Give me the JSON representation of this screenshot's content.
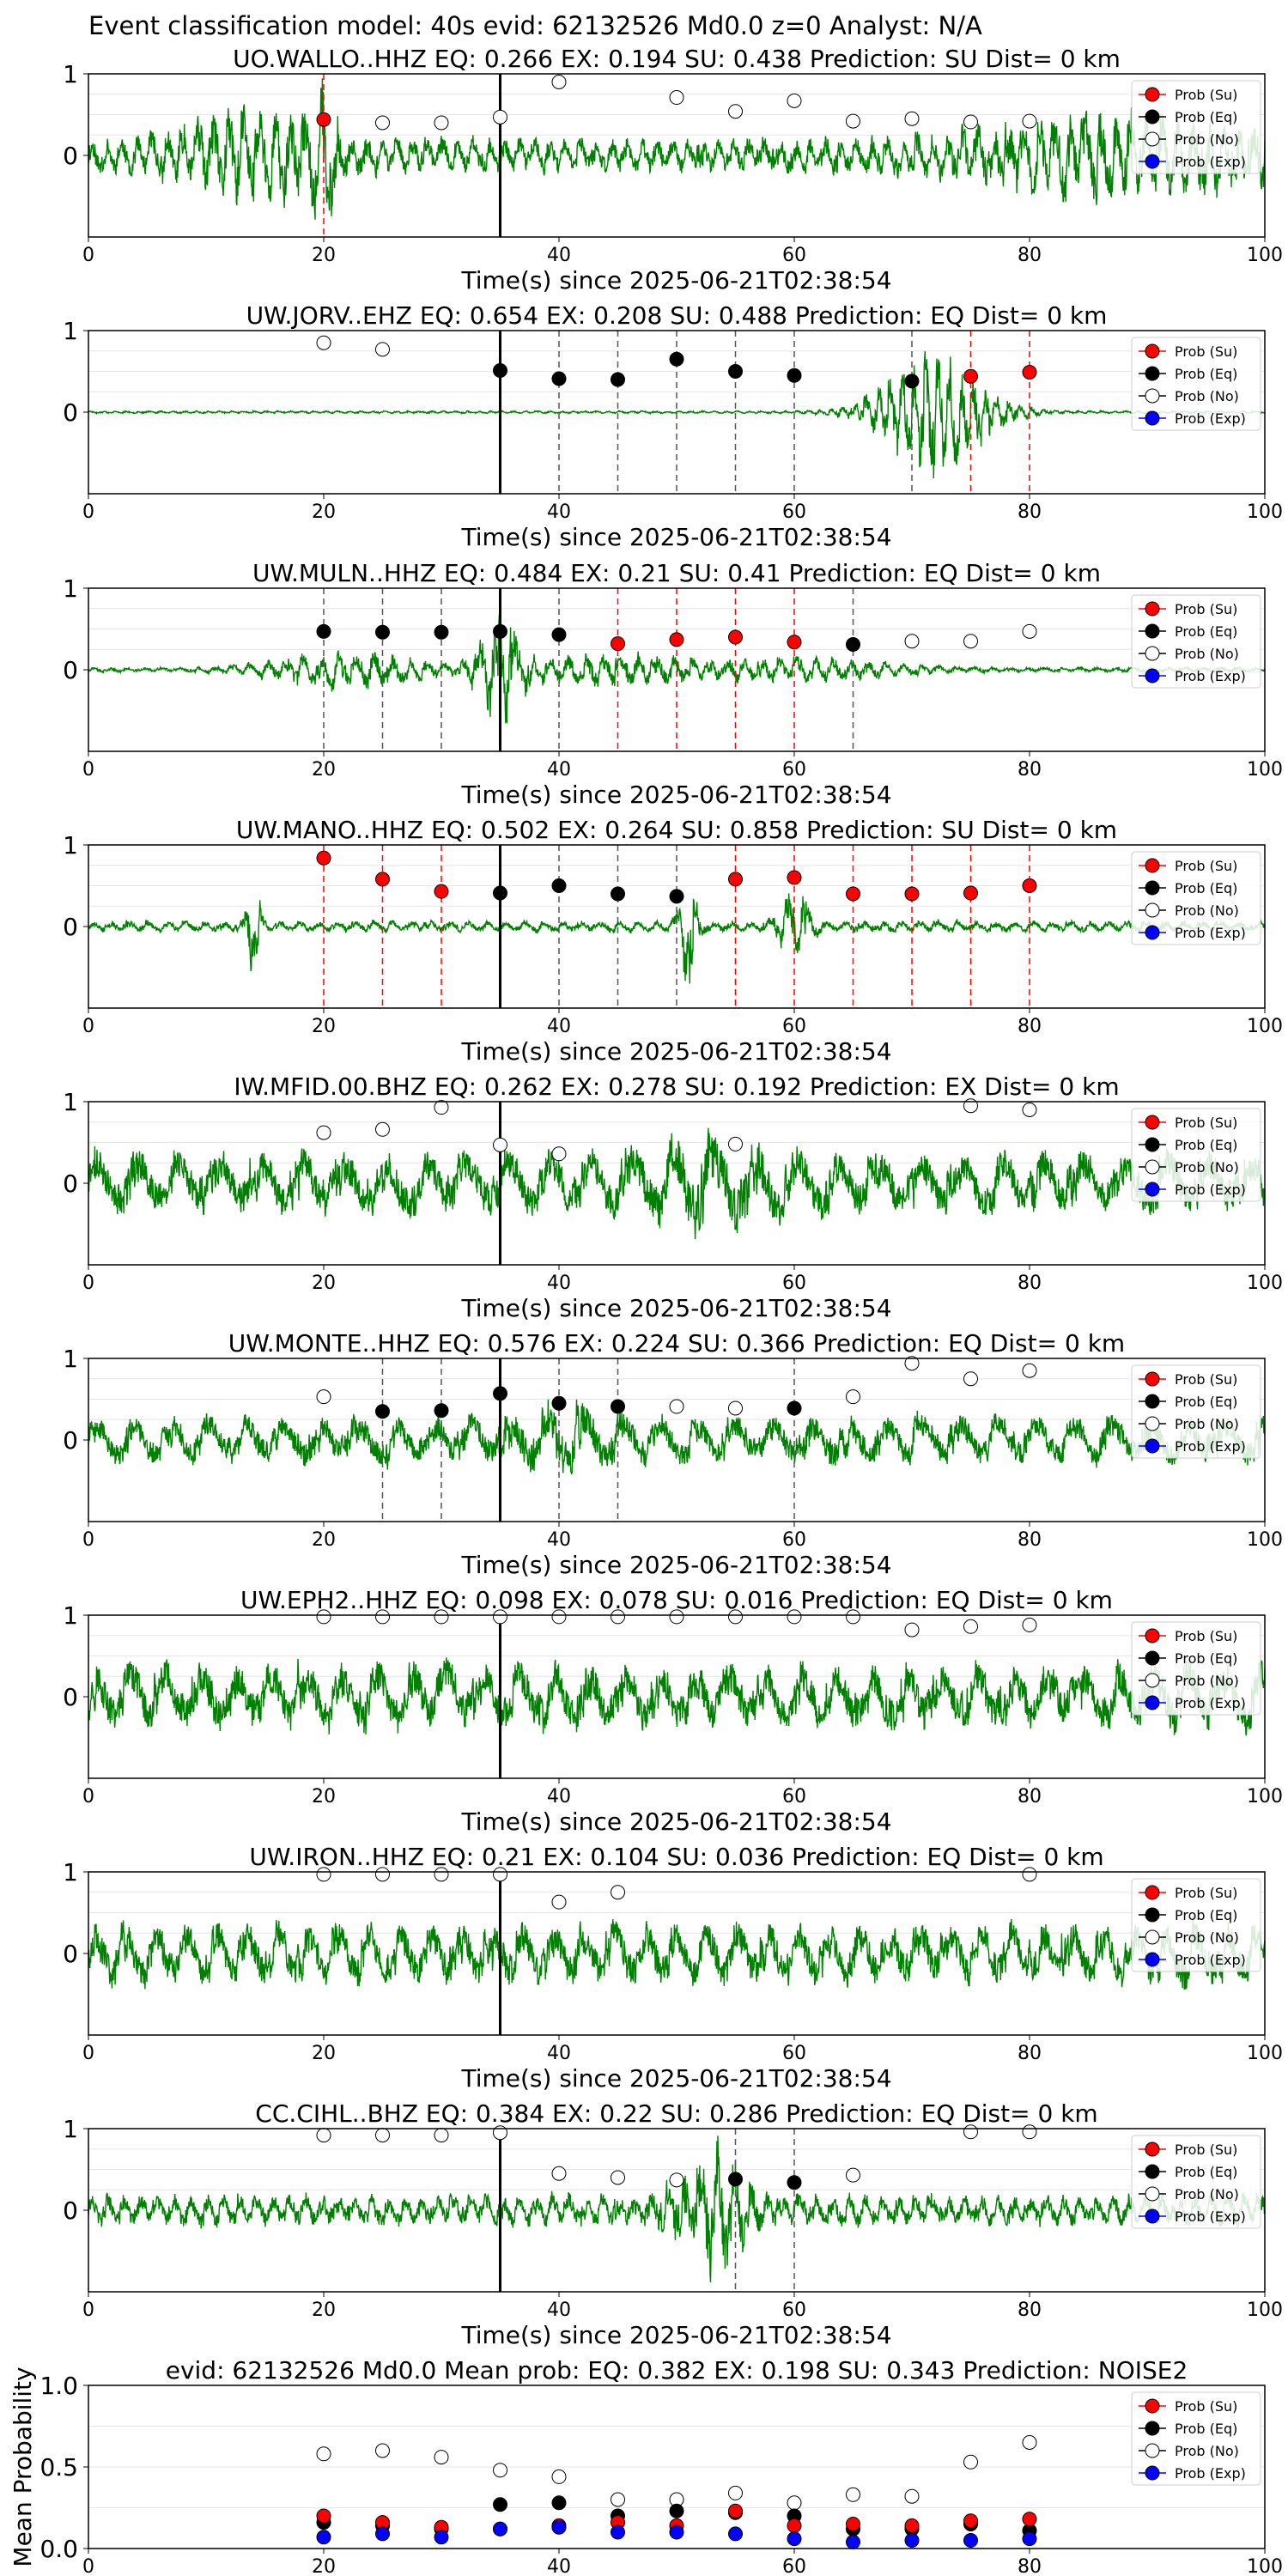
{
  "figure": {
    "suptitle": "Event classification model: 40s evid: 62132526 Md0.0 z=0 Analyst: N/A"
  },
  "legend_labels": [
    "Prob (Su)",
    "Prob (Eq)",
    "Prob (No)",
    "Prob (Exp)"
  ],
  "colors": {
    "waveform": "#008000",
    "su": "#ff0000",
    "eq": "#000000",
    "no": "#ffffff",
    "exp": "#0000ff",
    "su_line": "#ff0000",
    "eq_line": "#555555",
    "pick_line": "#000000"
  },
  "chart_data": [
    {
      "type": "line",
      "station": "UO.WALLO..HHZ",
      "title": "UO.WALLO..HHZ   EQ: 0.266  EX: 0.194  SU: 0.438   Prediction: SU    Dist= 0 km",
      "xlabel": "Time(s) since 2025-06-21T02:38:54",
      "xlim": [
        0,
        100
      ],
      "ylim": [
        -1,
        1
      ],
      "xticks": [
        0,
        20,
        40,
        60,
        80,
        100
      ],
      "yticks": [
        0,
        1
      ],
      "grid": true,
      "legend": "right",
      "pick_time": 35,
      "waveform": {
        "amp": 0.22,
        "period": 1.3,
        "seed": 11,
        "events": [
          {
            "t": 14,
            "a": 0.45,
            "w": 6
          },
          {
            "t": 20,
            "a": 0.7,
            "w": 1.2
          },
          {
            "t": 88,
            "a": 0.35,
            "w": 14
          }
        ]
      },
      "points": [
        {
          "x": 20,
          "y": 0.44,
          "cls": "su",
          "line": true
        },
        {
          "x": 25,
          "y": 0.4,
          "cls": "no"
        },
        {
          "x": 30,
          "y": 0.4,
          "cls": "no"
        },
        {
          "x": 35,
          "y": 0.47,
          "cls": "no"
        },
        {
          "x": 40,
          "y": 0.9,
          "cls": "no"
        },
        {
          "x": 50,
          "y": 0.71,
          "cls": "no"
        },
        {
          "x": 55,
          "y": 0.54,
          "cls": "no"
        },
        {
          "x": 60,
          "y": 0.67,
          "cls": "no"
        },
        {
          "x": 65,
          "y": 0.42,
          "cls": "no"
        },
        {
          "x": 70,
          "y": 0.45,
          "cls": "no"
        },
        {
          "x": 75,
          "y": 0.41,
          "cls": "no"
        },
        {
          "x": 80,
          "y": 0.42,
          "cls": "no"
        }
      ]
    },
    {
      "type": "line",
      "station": "UW.JORV..EHZ",
      "title": "UW.JORV..EHZ  EQ: 0.654  EX: 0.208  SU: 0.488   Prediction: EQ    Dist= 0 km",
      "xlabel": "Time(s) since 2025-06-21T02:38:54",
      "xlim": [
        0,
        100
      ],
      "ylim": [
        -1,
        1
      ],
      "xticks": [
        0,
        20,
        40,
        60,
        80,
        100
      ],
      "yticks": [
        0,
        1
      ],
      "grid": true,
      "legend": "right",
      "pick_time": 35,
      "waveform": {
        "amp": 0.015,
        "period": 1.0,
        "seed": 23,
        "events": [
          {
            "t": 72,
            "a": 0.75,
            "w": 5
          }
        ]
      },
      "points": [
        {
          "x": 20,
          "y": 0.85,
          "cls": "no"
        },
        {
          "x": 25,
          "y": 0.77,
          "cls": "no"
        },
        {
          "x": 35,
          "y": 0.51,
          "cls": "eq",
          "line": true
        },
        {
          "x": 40,
          "y": 0.41,
          "cls": "eq",
          "line": true
        },
        {
          "x": 45,
          "y": 0.4,
          "cls": "eq",
          "line": true
        },
        {
          "x": 50,
          "y": 0.65,
          "cls": "eq",
          "line": true
        },
        {
          "x": 55,
          "y": 0.5,
          "cls": "eq",
          "line": true
        },
        {
          "x": 60,
          "y": 0.45,
          "cls": "eq",
          "line": true
        },
        {
          "x": 70,
          "y": 0.38,
          "cls": "eq",
          "line": true
        },
        {
          "x": 75,
          "y": 0.44,
          "cls": "su",
          "line": true
        },
        {
          "x": 80,
          "y": 0.49,
          "cls": "su",
          "line": true
        }
      ]
    },
    {
      "type": "line",
      "station": "UW.MULN..HHZ",
      "title": "UW.MULN..HHZ   EQ: 0.484  EX: 0.21  SU: 0.41   Prediction: EQ    Dist= 0 km",
      "xlabel": "Time(s) since 2025-06-21T02:38:54",
      "xlim": [
        0,
        100
      ],
      "ylim": [
        -1,
        1
      ],
      "xticks": [
        0,
        20,
        40,
        60,
        80,
        100
      ],
      "yticks": [
        0,
        1
      ],
      "grid": true,
      "legend": "right",
      "pick_time": 35,
      "waveform": {
        "amp": 0.03,
        "period": 1.5,
        "seed": 37,
        "events": [
          {
            "t": 22,
            "a": 0.22,
            "w": 7
          },
          {
            "t": 35,
            "a": 0.65,
            "w": 2
          },
          {
            "t": 45,
            "a": 0.18,
            "w": 10
          },
          {
            "t": 62,
            "a": 0.12,
            "w": 8
          }
        ]
      },
      "points": [
        {
          "x": 20,
          "y": 0.47,
          "cls": "eq",
          "line": true
        },
        {
          "x": 25,
          "y": 0.46,
          "cls": "eq",
          "line": true
        },
        {
          "x": 30,
          "y": 0.46,
          "cls": "eq",
          "line": true
        },
        {
          "x": 35,
          "y": 0.47,
          "cls": "eq",
          "line": true
        },
        {
          "x": 40,
          "y": 0.43,
          "cls": "eq",
          "line": true
        },
        {
          "x": 45,
          "y": 0.32,
          "cls": "su",
          "line": true
        },
        {
          "x": 50,
          "y": 0.37,
          "cls": "su",
          "line": true
        },
        {
          "x": 55,
          "y": 0.4,
          "cls": "su",
          "line": true
        },
        {
          "x": 60,
          "y": 0.34,
          "cls": "su",
          "line": true
        },
        {
          "x": 65,
          "y": 0.31,
          "cls": "eq",
          "line": true
        },
        {
          "x": 70,
          "y": 0.35,
          "cls": "no"
        },
        {
          "x": 75,
          "y": 0.35,
          "cls": "no"
        },
        {
          "x": 80,
          "y": 0.47,
          "cls": "no"
        }
      ]
    },
    {
      "type": "line",
      "station": "UW.MANO..HHZ",
      "title": "UW.MANO..HHZ   EQ: 0.502  EX: 0.264  SU: 0.858   Prediction: SU    Dist= 0 km",
      "xlabel": "Time(s) since 2025-06-21T02:38:54",
      "xlim": [
        0,
        100
      ],
      "ylim": [
        -1,
        1
      ],
      "xticks": [
        0,
        20,
        40,
        60,
        80,
        100
      ],
      "yticks": [
        0,
        1
      ],
      "grid": true,
      "legend": "right",
      "pick_time": 35,
      "waveform": {
        "amp": 0.07,
        "period": 1.6,
        "seed": 53,
        "events": [
          {
            "t": 14,
            "a": 0.6,
            "w": 0.6
          },
          {
            "t": 51,
            "a": 0.7,
            "w": 0.8
          },
          {
            "t": 60,
            "a": 0.35,
            "w": 1.5
          }
        ]
      },
      "points": [
        {
          "x": 20,
          "y": 0.84,
          "cls": "su",
          "line": true
        },
        {
          "x": 25,
          "y": 0.58,
          "cls": "su",
          "line": true
        },
        {
          "x": 30,
          "y": 0.43,
          "cls": "su",
          "line": true
        },
        {
          "x": 35,
          "y": 0.41,
          "cls": "eq",
          "line": true
        },
        {
          "x": 40,
          "y": 0.5,
          "cls": "eq",
          "line": true
        },
        {
          "x": 45,
          "y": 0.4,
          "cls": "eq",
          "line": true
        },
        {
          "x": 50,
          "y": 0.37,
          "cls": "eq",
          "line": true
        },
        {
          "x": 55,
          "y": 0.58,
          "cls": "su",
          "line": true
        },
        {
          "x": 60,
          "y": 0.6,
          "cls": "su",
          "line": true
        },
        {
          "x": 65,
          "y": 0.4,
          "cls": "su",
          "line": true
        },
        {
          "x": 70,
          "y": 0.4,
          "cls": "su",
          "line": true
        },
        {
          "x": 75,
          "y": 0.41,
          "cls": "su",
          "line": true
        },
        {
          "x": 80,
          "y": 0.5,
          "cls": "su",
          "line": true
        }
      ]
    },
    {
      "type": "line",
      "station": "IW.MFID.00.BHZ",
      "title": "IW.MFID.00.BHZ   EQ: 0.262  EX: 0.278  SU: 0.192   Prediction: EX    Dist= 0 km",
      "xlabel": "Time(s) since 2025-06-21T02:38:54",
      "xlim": [
        0,
        100
      ],
      "ylim": [
        -1,
        1
      ],
      "xticks": [
        0,
        20,
        40,
        60,
        80,
        100
      ],
      "yticks": [
        0,
        1
      ],
      "grid": true,
      "legend": "right",
      "pick_time": 35,
      "waveform": {
        "amp": 0.4,
        "period": 3.5,
        "seed": 71,
        "events": [
          {
            "t": 53,
            "a": 0.3,
            "w": 5
          }
        ]
      },
      "points": [
        {
          "x": 20,
          "y": 0.62,
          "cls": "no"
        },
        {
          "x": 25,
          "y": 0.66,
          "cls": "no"
        },
        {
          "x": 30,
          "y": 0.93,
          "cls": "no"
        },
        {
          "x": 35,
          "y": 0.47,
          "cls": "no"
        },
        {
          "x": 40,
          "y": 0.36,
          "cls": "no"
        },
        {
          "x": 55,
          "y": 0.48,
          "cls": "no"
        },
        {
          "x": 75,
          "y": 0.95,
          "cls": "no"
        },
        {
          "x": 80,
          "y": 0.9,
          "cls": "no"
        }
      ]
    },
    {
      "type": "line",
      "station": "UW.MONTE..HHZ",
      "title": "UW.MONTE..HHZ   EQ: 0.576  EX: 0.224  SU: 0.366   Prediction: EQ    Dist= 0 km",
      "xlabel": "Time(s) since 2025-06-21T02:38:54",
      "xlim": [
        0,
        100
      ],
      "ylim": [
        -1,
        1
      ],
      "xticks": [
        0,
        20,
        40,
        60,
        80,
        100
      ],
      "yticks": [
        0,
        1
      ],
      "grid": true,
      "legend": "right",
      "pick_time": 35,
      "waveform": {
        "amp": 0.3,
        "period": 3.2,
        "seed": 89,
        "events": [
          {
            "t": 40,
            "a": 0.2,
            "w": 4
          }
        ]
      },
      "points": [
        {
          "x": 20,
          "y": 0.53,
          "cls": "no"
        },
        {
          "x": 25,
          "y": 0.35,
          "cls": "eq",
          "line": true
        },
        {
          "x": 30,
          "y": 0.36,
          "cls": "eq",
          "line": true
        },
        {
          "x": 35,
          "y": 0.57,
          "cls": "eq",
          "line": true
        },
        {
          "x": 40,
          "y": 0.45,
          "cls": "eq",
          "line": true
        },
        {
          "x": 45,
          "y": 0.41,
          "cls": "eq",
          "line": true
        },
        {
          "x": 50,
          "y": 0.41,
          "cls": "no"
        },
        {
          "x": 55,
          "y": 0.39,
          "cls": "no"
        },
        {
          "x": 60,
          "y": 0.39,
          "cls": "eq",
          "line": true
        },
        {
          "x": 65,
          "y": 0.53,
          "cls": "no"
        },
        {
          "x": 70,
          "y": 0.94,
          "cls": "no"
        },
        {
          "x": 75,
          "y": 0.75,
          "cls": "no"
        },
        {
          "x": 80,
          "y": 0.85,
          "cls": "no"
        }
      ]
    },
    {
      "type": "line",
      "station": "UW.EPH2..HHZ",
      "title": "UW.EPH2..HHZ   EQ: 0.098  EX: 0.078  SU: 0.016   Prediction: EQ    Dist= 0 km",
      "xlabel": "Time(s) since 2025-06-21T02:38:54",
      "xlim": [
        0,
        100
      ],
      "ylim": [
        -1,
        1
      ],
      "xticks": [
        0,
        20,
        40,
        60,
        80,
        100
      ],
      "yticks": [
        0,
        1
      ],
      "grid": true,
      "legend": "right",
      "pick_time": 35,
      "waveform": {
        "amp": 0.42,
        "period": 3.0,
        "seed": 97,
        "events": []
      },
      "points": [
        {
          "x": 20,
          "y": 0.98,
          "cls": "no"
        },
        {
          "x": 25,
          "y": 0.98,
          "cls": "no"
        },
        {
          "x": 30,
          "y": 0.98,
          "cls": "no"
        },
        {
          "x": 35,
          "y": 0.98,
          "cls": "no"
        },
        {
          "x": 40,
          "y": 0.98,
          "cls": "no"
        },
        {
          "x": 45,
          "y": 0.98,
          "cls": "no"
        },
        {
          "x": 50,
          "y": 0.98,
          "cls": "no"
        },
        {
          "x": 55,
          "y": 0.98,
          "cls": "no"
        },
        {
          "x": 60,
          "y": 0.98,
          "cls": "no"
        },
        {
          "x": 65,
          "y": 0.98,
          "cls": "no"
        },
        {
          "x": 70,
          "y": 0.82,
          "cls": "no"
        },
        {
          "x": 75,
          "y": 0.86,
          "cls": "no"
        },
        {
          "x": 80,
          "y": 0.88,
          "cls": "no"
        }
      ]
    },
    {
      "type": "line",
      "station": "UW.IRON..HHZ",
      "title": "UW.IRON..HHZ   EQ: 0.21  EX: 0.104  SU: 0.036   Prediction: EQ    Dist= 0 km",
      "xlabel": "Time(s) since 2025-06-21T02:38:54",
      "xlim": [
        0,
        100
      ],
      "ylim": [
        -1,
        1
      ],
      "xticks": [
        0,
        20,
        40,
        60,
        80,
        100
      ],
      "yticks": [
        0,
        1
      ],
      "grid": true,
      "legend": "right",
      "pick_time": 35,
      "waveform": {
        "amp": 0.38,
        "period": 2.6,
        "seed": 113,
        "events": []
      },
      "points": [
        {
          "x": 20,
          "y": 0.97,
          "cls": "no"
        },
        {
          "x": 25,
          "y": 0.97,
          "cls": "no"
        },
        {
          "x": 30,
          "y": 0.97,
          "cls": "no"
        },
        {
          "x": 35,
          "y": 0.97,
          "cls": "no"
        },
        {
          "x": 40,
          "y": 0.63,
          "cls": "no"
        },
        {
          "x": 45,
          "y": 0.75,
          "cls": "no"
        },
        {
          "x": 80,
          "y": 0.97,
          "cls": "no"
        }
      ]
    },
    {
      "type": "line",
      "station": "CC.CIHL..BHZ",
      "title": "CC.CIHL..BHZ   EQ: 0.384  EX: 0.22  SU: 0.286   Prediction: EQ    Dist= 0 km",
      "xlabel": "Time(s) since 2025-06-21T02:38:54",
      "xlim": [
        0,
        100
      ],
      "ylim": [
        -1,
        1
      ],
      "xticks": [
        0,
        20,
        40,
        60,
        80,
        100
      ],
      "yticks": [
        0,
        1
      ],
      "grid": true,
      "legend": "right",
      "pick_time": 35,
      "waveform": {
        "amp": 0.2,
        "period": 1.4,
        "seed": 131,
        "events": [
          {
            "t": 53,
            "a": 0.7,
            "w": 3
          }
        ]
      },
      "points": [
        {
          "x": 20,
          "y": 0.92,
          "cls": "no"
        },
        {
          "x": 25,
          "y": 0.92,
          "cls": "no"
        },
        {
          "x": 30,
          "y": 0.92,
          "cls": "no"
        },
        {
          "x": 35,
          "y": 0.95,
          "cls": "no"
        },
        {
          "x": 40,
          "y": 0.45,
          "cls": "no"
        },
        {
          "x": 45,
          "y": 0.4,
          "cls": "no"
        },
        {
          "x": 50,
          "y": 0.37,
          "cls": "no"
        },
        {
          "x": 55,
          "y": 0.38,
          "cls": "eq",
          "line": true
        },
        {
          "x": 60,
          "y": 0.34,
          "cls": "eq",
          "line": true
        },
        {
          "x": 65,
          "y": 0.43,
          "cls": "no"
        },
        {
          "x": 75,
          "y": 0.96,
          "cls": "no"
        },
        {
          "x": 80,
          "y": 0.96,
          "cls": "no"
        }
      ]
    },
    {
      "type": "scatter",
      "title": "evid: 62132526  Md0.0   Mean prob:    EQ: 0.382  EX: 0.198  SU: 0.343   Prediction: NOISE2",
      "ylabel": "Mean Probability",
      "xlim": [
        0,
        100
      ],
      "ylim": [
        0,
        1
      ],
      "xticks": [
        0,
        20,
        40,
        60,
        80,
        100
      ],
      "yticks": [
        0.0,
        0.5,
        1.0
      ],
      "ytick_labels": [
        "0.0",
        "0.5",
        "1.0"
      ],
      "grid": true,
      "legend": "right",
      "x": [
        20,
        25,
        30,
        35,
        40,
        45,
        50,
        55,
        60,
        65,
        70,
        75,
        80
      ],
      "series": [
        {
          "cls": "no",
          "values": [
            0.58,
            0.6,
            0.56,
            0.48,
            0.44,
            0.3,
            0.3,
            0.34,
            0.28,
            0.33,
            0.32,
            0.53,
            0.65
          ]
        },
        {
          "cls": "eq",
          "values": [
            0.16,
            0.14,
            0.12,
            0.27,
            0.28,
            0.2,
            0.23,
            0.22,
            0.2,
            0.12,
            0.12,
            0.15,
            0.11
          ]
        },
        {
          "cls": "su",
          "values": [
            0.2,
            0.16,
            0.13,
            0.12,
            0.14,
            0.16,
            0.14,
            0.23,
            0.14,
            0.15,
            0.14,
            0.17,
            0.18
          ]
        },
        {
          "cls": "exp",
          "values": [
            0.07,
            0.09,
            0.07,
            0.12,
            0.13,
            0.1,
            0.1,
            0.09,
            0.06,
            0.04,
            0.05,
            0.05,
            0.06
          ]
        }
      ]
    }
  ]
}
